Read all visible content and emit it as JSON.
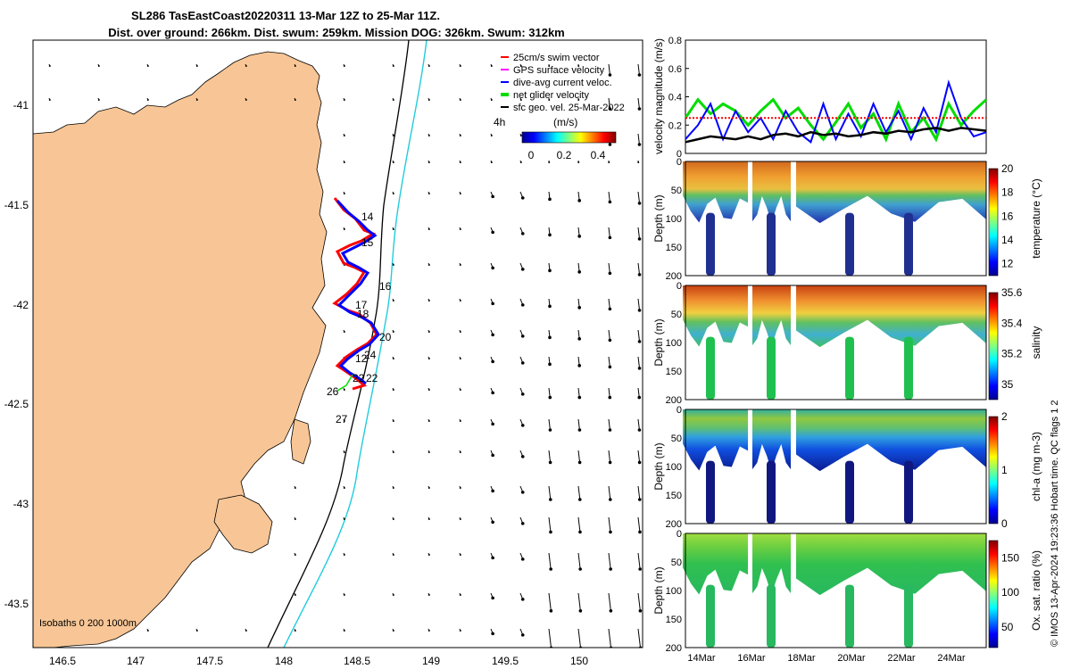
{
  "title": {
    "line1": "SL286 TasEastCoast20220311 13-Mar 12Z to 25-Mar 11Z.",
    "line2": "Dist. over ground: 266km. Dist. swum: 259km. Mission DOG: 326km. Swum: 312km"
  },
  "map": {
    "legend": [
      {
        "label": "25cm/s swim vector",
        "color": "#ff0000"
      },
      {
        "label": "GPS surface velocity",
        "color": "#ff00ff"
      },
      {
        "label": "dive-avg current veloc.",
        "color": "#0000ff"
      },
      {
        "label": "net glider velocity",
        "color": "#00dd00"
      },
      {
        "label": "sfc geo. vel. 25-Mar-2022",
        "color": "#000000"
      }
    ],
    "colorbar_title": "(m/s)",
    "colorbar_ticks": [
      "0",
      "0.2",
      "0.4"
    ],
    "age_label": "4h",
    "isobath_label": "Isobaths 0   200  1000m",
    "x_ticks": [
      "146.5",
      "147",
      "147.5",
      "148",
      "148.5",
      "149",
      "149.5",
      "150"
    ],
    "y_ticks": [
      "-41",
      "-41.5",
      "-42",
      "-42.5",
      "-43",
      "-43.5"
    ],
    "day_labels": [
      "14",
      "15",
      "16",
      "17",
      "18",
      "20",
      "24",
      "12",
      "22",
      "22",
      "26",
      "27"
    ],
    "colors": {
      "land": "#f8c696",
      "isobath_200": "#000000",
      "isobath_1000": "#22ccdd",
      "track_red": "#ff0000",
      "track_blue": "#0000ff"
    }
  },
  "chart_data": [
    {
      "type": "line",
      "title": "",
      "ylabel": "velocity magnitude (m/s)",
      "ylim": [
        0,
        0.8
      ],
      "y_ticks": [
        "0",
        "0.2",
        "0.4",
        "0.6",
        "0.8"
      ],
      "x": [
        13.5,
        14,
        14.5,
        15,
        15.5,
        16,
        16.5,
        17,
        17.5,
        18,
        18.5,
        19,
        19.5,
        20,
        20.5,
        21,
        21.5,
        22,
        22.5,
        23,
        23.5,
        24,
        24.5,
        25,
        25.5
      ],
      "series": [
        {
          "name": "net glider velocity",
          "color": "#00dd00",
          "values": [
            0.25,
            0.38,
            0.28,
            0.35,
            0.3,
            0.2,
            0.3,
            0.38,
            0.25,
            0.32,
            0.2,
            0.1,
            0.22,
            0.35,
            0.18,
            0.28,
            0.1,
            0.35,
            0.15,
            0.25,
            0.1,
            0.35,
            0.2,
            0.3,
            0.38
          ]
        },
        {
          "name": "dive-avg current veloc.",
          "color": "#0000ff",
          "values": [
            0.1,
            0.2,
            0.35,
            0.1,
            0.3,
            0.15,
            0.25,
            0.1,
            0.3,
            0.15,
            0.08,
            0.35,
            0.1,
            0.28,
            0.12,
            0.35,
            0.15,
            0.3,
            0.1,
            0.32,
            0.15,
            0.5,
            0.25,
            0.12,
            0.15
          ]
        },
        {
          "name": "sfc geo. vel.",
          "color": "#000000",
          "values": [
            0.08,
            0.1,
            0.12,
            0.11,
            0.1,
            0.12,
            0.1,
            0.13,
            0.14,
            0.12,
            0.15,
            0.13,
            0.14,
            0.12,
            0.13,
            0.15,
            0.14,
            0.16,
            0.15,
            0.17,
            0.18,
            0.16,
            0.18,
            0.17,
            0.16
          ]
        },
        {
          "name": "25cm/s swim vector",
          "color": "#ff0000",
          "values": [
            0.25,
            0.25,
            0.25,
            0.25,
            0.25,
            0.25,
            0.25,
            0.25,
            0.25,
            0.25,
            0.25,
            0.25,
            0.25,
            0.25,
            0.25,
            0.25,
            0.25,
            0.25,
            0.25,
            0.25,
            0.25,
            0.25,
            0.25,
            0.25,
            0.25
          ]
        }
      ]
    },
    {
      "type": "heatmap",
      "title": "",
      "ylabel": "Depth (m)",
      "ylim": [
        200,
        0
      ],
      "y_ticks": [
        "0",
        "50",
        "100",
        "150",
        "200"
      ],
      "colorbar_label": "temperature (°C)",
      "colorbar_ticks": [
        "12",
        "14",
        "16",
        "18",
        "20"
      ],
      "clim": [
        11,
        20
      ]
    },
    {
      "type": "heatmap",
      "title": "",
      "ylabel": "Depth (m)",
      "ylim": [
        200,
        0
      ],
      "y_ticks": [
        "0",
        "50",
        "100",
        "150",
        "200"
      ],
      "colorbar_label": "salinity",
      "colorbar_ticks": [
        "35",
        "35.2",
        "35.4",
        "35.6"
      ],
      "clim": [
        34.9,
        35.6
      ]
    },
    {
      "type": "heatmap",
      "title": "",
      "ylabel": "Depth (m)",
      "ylim": [
        200,
        0
      ],
      "y_ticks": [
        "0",
        "50",
        "100",
        "150",
        "200"
      ],
      "colorbar_label": "chl-a (mg m-3)",
      "colorbar_ticks": [
        "0",
        "1",
        "2"
      ],
      "clim": [
        0,
        2
      ]
    },
    {
      "type": "heatmap",
      "title": "",
      "ylabel": "Depth (m)",
      "ylim": [
        200,
        0
      ],
      "y_ticks": [
        "0",
        "50",
        "100",
        "150",
        "200"
      ],
      "colorbar_label": "Ox. sat. ratio (%)",
      "colorbar_ticks": [
        "50",
        "100",
        "150"
      ],
      "clim": [
        20,
        175
      ],
      "x_ticks": [
        "14Mar",
        "16Mar",
        "18Mar",
        "20Mar",
        "22Mar",
        "24Mar"
      ]
    }
  ],
  "footer": {
    "credit": "© IMOS 13-Apr-2024 19:23:36 Hobart time. QC flags 1  2"
  }
}
